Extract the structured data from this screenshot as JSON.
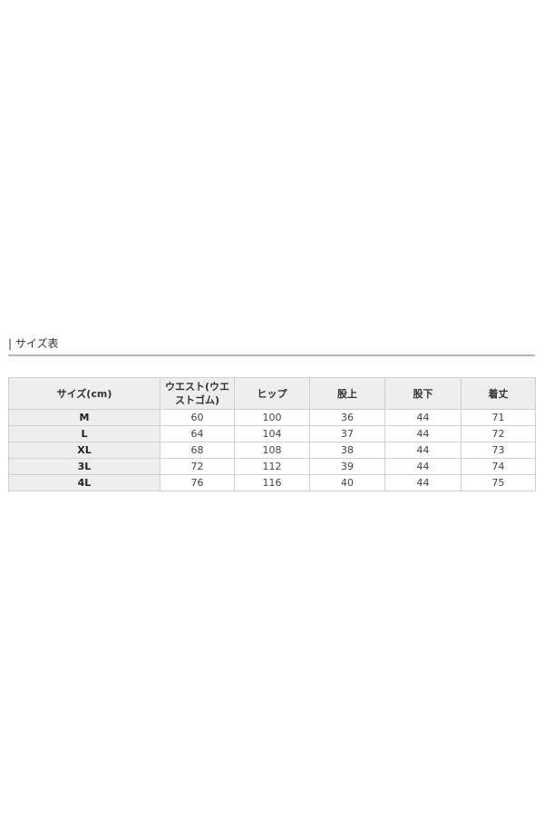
{
  "section_title": "| サイズ表",
  "table": {
    "headers": [
      "サイズ(cm)",
      "ウエスト(ウエストゴム)",
      "ヒップ",
      "股上",
      "股下",
      "着丈"
    ],
    "rows": [
      [
        "M",
        "60",
        "100",
        "36",
        "44",
        "71"
      ],
      [
        "L",
        "64",
        "104",
        "37",
        "44",
        "72"
      ],
      [
        "XL",
        "68",
        "108",
        "38",
        "44",
        "73"
      ],
      [
        "3L",
        "72",
        "112",
        "39",
        "44",
        "74"
      ],
      [
        "4L",
        "76",
        "116",
        "40",
        "44",
        "75"
      ]
    ]
  }
}
